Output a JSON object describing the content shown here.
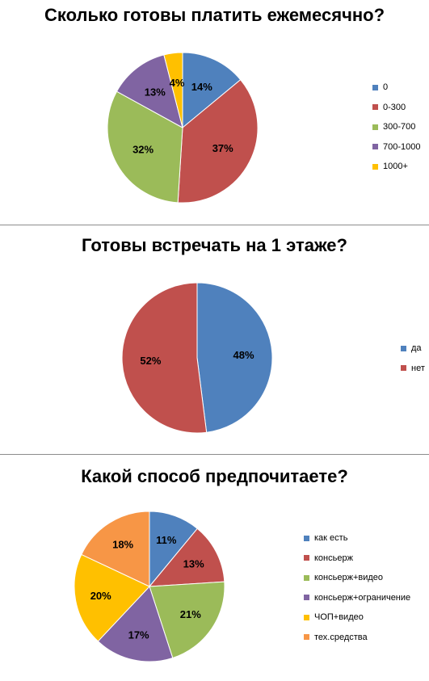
{
  "chart_data": [
    {
      "type": "pie",
      "title": "Сколько готовы платить ежемесячно?",
      "categories": [
        "0",
        "0-300",
        "300-700",
        "700-1000",
        "1000+"
      ],
      "values": [
        14,
        37,
        32,
        13,
        4
      ],
      "labels": [
        "14%",
        "37%",
        "32%",
        "13%",
        "4%"
      ],
      "colors": [
        "#4f81bd",
        "#c0504d",
        "#9bbb59",
        "#8064a2",
        "#ffc000"
      ],
      "legend_position": "right"
    },
    {
      "type": "pie",
      "title": "Готовы встречать на 1 этаже?",
      "categories": [
        "да",
        "нет"
      ],
      "values": [
        48,
        52
      ],
      "labels": [
        "48%",
        "52%"
      ],
      "colors": [
        "#4f81bd",
        "#c0504d"
      ],
      "legend_position": "right"
    },
    {
      "type": "pie",
      "title": "Какой способ предпочитаете?",
      "categories": [
        "как есть",
        "консьерж",
        "консьерж+видео",
        "консьерж+ограничение",
        "ЧОП+видео",
        "тех.средства"
      ],
      "values": [
        11,
        13,
        21,
        17,
        20,
        18
      ],
      "labels": [
        "11%",
        "13%",
        "21%",
        "17%",
        "20%",
        "18%"
      ],
      "colors": [
        "#4f81bd",
        "#c0504d",
        "#9bbb59",
        "#8064a2",
        "#ffc000",
        "#f79646"
      ],
      "legend_position": "right"
    }
  ]
}
